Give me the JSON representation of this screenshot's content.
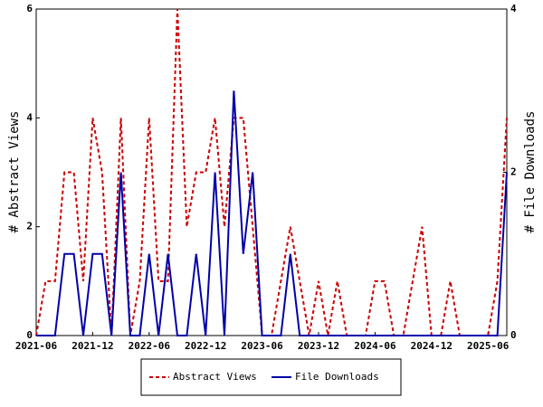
{
  "chart_data": {
    "type": "line",
    "ylabel": "# Abstract Views",
    "y2label": "# File Downloads",
    "categories": [
      "2021-06",
      null,
      null,
      null,
      null,
      null,
      "2021-12",
      null,
      null,
      null,
      null,
      null,
      "2022-06",
      null,
      null,
      null,
      null,
      null,
      "2022-12",
      null,
      null,
      null,
      null,
      null,
      "2023-06",
      null,
      null,
      null,
      null,
      null,
      "2023-12",
      null,
      null,
      null,
      null,
      null,
      "2024-06",
      null,
      null,
      null,
      null,
      null,
      "2024-12",
      null,
      null,
      null,
      null,
      null,
      "2025-06",
      null,
      null
    ],
    "series": [
      {
        "name": "Abstract Views",
        "color": "#cc0000",
        "dashed": true,
        "axis": "y",
        "values": [
          0,
          1,
          1,
          3,
          3,
          1,
          4,
          3,
          0,
          4,
          0,
          1,
          4,
          1,
          1,
          6,
          2,
          3,
          3,
          4,
          2,
          4,
          4,
          2,
          0,
          0,
          1,
          2,
          1,
          0,
          1,
          0,
          1,
          0,
          0,
          0,
          1,
          1,
          0,
          0,
          1,
          2,
          0,
          0,
          1,
          0,
          0,
          0,
          0,
          1,
          4
        ]
      },
      {
        "name": "File Downloads",
        "color": "#0000aa",
        "dashed": false,
        "axis": "y2",
        "values": [
          0,
          0,
          0,
          1,
          1,
          0,
          1,
          1,
          0,
          2,
          0,
          0,
          1,
          0,
          1,
          0,
          0,
          1,
          0,
          2,
          0,
          3,
          1,
          2,
          0,
          0,
          0,
          1,
          0,
          0,
          0,
          0,
          0,
          0,
          0,
          0,
          0,
          0,
          0,
          0,
          0,
          0,
          0,
          0,
          0,
          0,
          0,
          0,
          0,
          0,
          2
        ]
      }
    ],
    "ylim": [
      0,
      6
    ],
    "yticks": [
      0,
      2,
      4,
      6
    ],
    "y2lim": [
      0,
      4
    ],
    "y2ticks": [
      0,
      2,
      4
    ],
    "legend": "bottom"
  }
}
